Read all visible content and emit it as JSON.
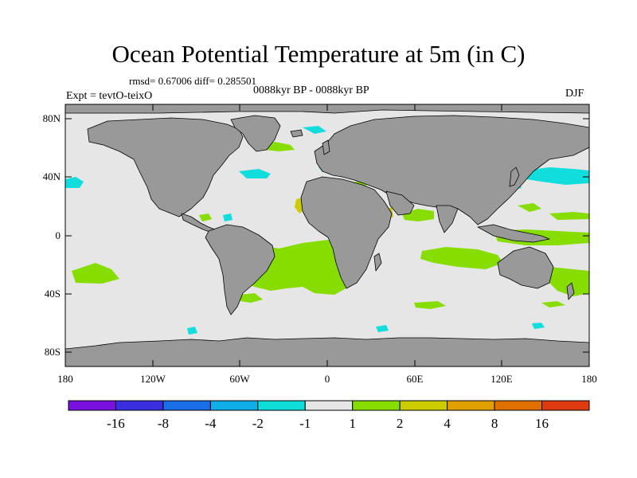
{
  "title": "Ocean Potential Temperature at 5m (in C)",
  "stats": "rmsd= 0.67006 diff= 0.285501",
  "expt": "Expt = tevtO-teixO",
  "period": "0088kyr BP - 0088kyr BP",
  "season": "DJF",
  "colors": {
    "land": "#999999",
    "ocean_neutral": "#e6e6e6",
    "positive_small": "#88dd00",
    "negative_small": "#11dddd"
  },
  "map": {
    "lon_range": [
      -180,
      180
    ],
    "lat_range": [
      -90,
      90
    ],
    "lat_ticks": [
      {
        "value": 80,
        "label": "80N"
      },
      {
        "value": 40,
        "label": "40N"
      },
      {
        "value": 0,
        "label": "0"
      },
      {
        "value": -40,
        "label": "40S"
      },
      {
        "value": -80,
        "label": "80S"
      }
    ],
    "lon_ticks": [
      {
        "value": -180,
        "label": "180"
      },
      {
        "value": -120,
        "label": "120W"
      },
      {
        "value": -60,
        "label": "60W"
      },
      {
        "value": 0,
        "label": "0"
      },
      {
        "value": 60,
        "label": "60E"
      },
      {
        "value": 120,
        "label": "120E"
      },
      {
        "value": 180,
        "label": "180"
      }
    ]
  },
  "colorbar": {
    "colors": [
      "#7a10e0",
      "#3a2ee0",
      "#1a6ee8",
      "#10aee8",
      "#10dcd8",
      "#e6e6e6",
      "#88dd00",
      "#cccc00",
      "#e0a000",
      "#e07000",
      "#e03a10"
    ],
    "labels": [
      "-16",
      "-8",
      "-4",
      "-2",
      "-1",
      "1",
      "2",
      "4",
      "8",
      "16"
    ]
  }
}
